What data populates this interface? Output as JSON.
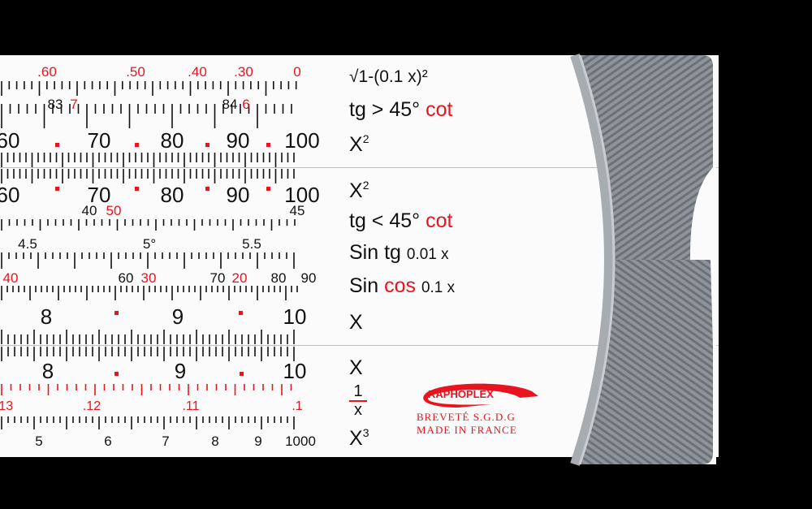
{
  "colors": {
    "red": "#e8141e",
    "black": "#111111",
    "body": "#fbfbfb",
    "cursor": "#8e9399"
  },
  "scales": [
    {
      "labels": [
        {
          "t": ".60",
          "c": "red"
        },
        {
          "t": ".50",
          "c": "red"
        },
        {
          "t": ".40",
          "c": "red"
        },
        {
          "t": ".30",
          "c": "red"
        },
        {
          "t": "0",
          "c": "red"
        }
      ],
      "name": "√1-(0.1 x)²"
    },
    {
      "labels": [
        {
          "t": "83",
          "c": "black"
        },
        {
          "t": "7",
          "c": "red"
        },
        {
          "t": "84",
          "c": "black"
        },
        {
          "t": "6",
          "c": "red"
        }
      ],
      "name_parts": [
        "tg > 45°",
        "cot"
      ]
    },
    {
      "labels": [
        {
          "t": "60"
        },
        {
          "t": "70"
        },
        {
          "t": "80"
        },
        {
          "t": "90"
        },
        {
          "t": "100"
        }
      ],
      "name": "X",
      "sup": "2"
    },
    {
      "labels": [
        {
          "t": "60"
        },
        {
          "t": "70"
        },
        {
          "t": "80"
        },
        {
          "t": "90"
        },
        {
          "t": "100"
        }
      ],
      "name": "X",
      "sup": "2"
    },
    {
      "labels": [
        {
          "t": "40",
          "c": "black"
        },
        {
          "t": "50",
          "c": "red"
        },
        {
          "t": "45",
          "c": "black"
        }
      ],
      "name_parts": [
        "tg < 45°",
        "cot"
      ]
    },
    {
      "labels": [
        {
          "t": "4.5"
        },
        {
          "t": "5°"
        },
        {
          "t": "5.5"
        }
      ],
      "name_parts": [
        "Sin tg",
        "0.01 x"
      ]
    },
    {
      "labels": [
        {
          "t": "40",
          "c": "red"
        },
        {
          "t": "60",
          "c": "black"
        },
        {
          "t": "30",
          "c": "red"
        },
        {
          "t": "70",
          "c": "black"
        },
        {
          "t": "20",
          "c": "red"
        },
        {
          "t": "80",
          "c": "black"
        },
        {
          "t": "90",
          "c": "black"
        }
      ],
      "name_parts": [
        "Sin",
        "cos",
        "0.1 x"
      ]
    },
    {
      "labels": [
        {
          "t": "8"
        },
        {
          "t": "9"
        },
        {
          "t": "10"
        }
      ],
      "name": "X"
    },
    {
      "labels": [
        {
          "t": "8"
        },
        {
          "t": "9"
        },
        {
          "t": "10"
        }
      ],
      "name": "X"
    },
    {
      "labels": [
        {
          "t": ".13"
        },
        {
          "t": ".12"
        },
        {
          "t": ".11"
        },
        {
          "t": ".1"
        }
      ],
      "name_num": "1",
      "name_den": "x"
    },
    {
      "labels": [
        {
          "t": "5"
        },
        {
          "t": "6"
        },
        {
          "t": "7"
        },
        {
          "t": "8"
        },
        {
          "t": "9"
        },
        {
          "t": "1000"
        }
      ],
      "name": "X",
      "sup": "3"
    }
  ],
  "logo": {
    "brand": "RAPHOPLEX",
    "line1": "BREVETÉ S.G.D.G",
    "line2": "MADE IN FRANCE"
  }
}
